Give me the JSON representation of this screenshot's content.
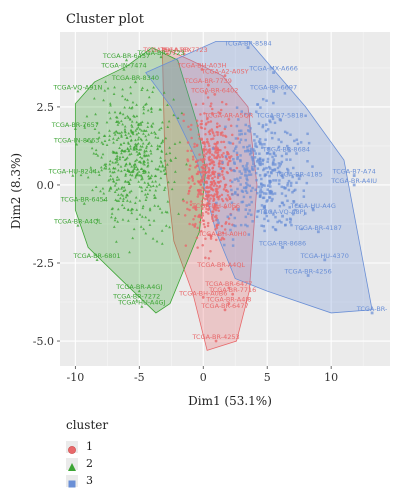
{
  "chart_data": {
    "type": "scatter",
    "title": "Cluster plot",
    "xlabel": "Dim1 (53.1%)",
    "ylabel": "Dim2 (8.3%)",
    "xlim": [
      -11.2,
      14.6
    ],
    "ylim": [
      -5.8,
      4.9
    ],
    "x_ticks": [
      -10,
      -5,
      0,
      5,
      10
    ],
    "x_tick_labels": [
      "-10",
      "-5",
      "0",
      "5",
      "10"
    ],
    "y_ticks": [
      2.5,
      0.0,
      -2.5,
      -5.0
    ],
    "y_tick_labels": [
      "2.5",
      "0.0",
      "-2.5",
      "-5.0"
    ],
    "grid": true,
    "legend_placement": "bottom-left",
    "legend_title": "cluster",
    "series": [
      {
        "name": "1",
        "color": "#E8696B",
        "marker": "circle",
        "hull": [
          [
            -3.2,
            4.4
          ],
          [
            -1.0,
            4.0
          ],
          [
            1.5,
            3.5
          ],
          [
            3.5,
            2.5
          ],
          [
            4.2,
            0.0
          ],
          [
            3.6,
            -3.4
          ],
          [
            2.6,
            -5.0
          ],
          [
            0.3,
            -5.3
          ],
          [
            -0.8,
            -3.5
          ],
          [
            -2.3,
            -1.8
          ],
          [
            -3.0,
            0.8
          ]
        ],
        "labeled_points": [
          {
            "x": -2.8,
            "y": 4.2,
            "label": "TCGA-BH-A1EX"
          },
          {
            "x": -1.5,
            "y": 4.2,
            "label": "TCGA-BR-7723"
          },
          {
            "x": -0.1,
            "y": 3.7,
            "label": "TCGA-BH-A03H"
          },
          {
            "x": 0.4,
            "y": 3.2,
            "label": "TCGA-BR-7739"
          },
          {
            "x": 1.7,
            "y": 3.5,
            "label": "TCGA-A2-A0SY"
          },
          {
            "x": 0.9,
            "y": 2.9,
            "label": "TCGA-BR-6402"
          },
          {
            "x": 2.0,
            "y": 2.1,
            "label": "TCGA-AR-A5QR"
          },
          {
            "x": 1.0,
            "y": -0.8,
            "label": "TCGA-BH-A0E6"
          },
          {
            "x": 1.5,
            "y": -1.7,
            "label": "TCGA-BH-A0H0"
          },
          {
            "x": 1.4,
            "y": -2.7,
            "label": "TCGA-BR-A4QL"
          },
          {
            "x": 2.0,
            "y": -3.3,
            "label": "TCGA-BR-6477"
          },
          {
            "x": 2.3,
            "y": -3.5,
            "label": "TCGA-BR-7716"
          },
          {
            "x": 0.0,
            "y": -3.6,
            "label": "TCGA-BH-A0B6"
          },
          {
            "x": 2.0,
            "y": -3.8,
            "label": "TCGA-BR-A4J8"
          },
          {
            "x": 1.7,
            "y": -4.0,
            "label": "TCGA-BR-6477"
          },
          {
            "x": 1.0,
            "y": -5.0,
            "label": "TCGA-BR-4253"
          }
        ]
      },
      {
        "name": "2",
        "color": "#3DA535",
        "marker": "triangle",
        "hull": [
          [
            -10.0,
            2.6
          ],
          [
            -8.5,
            3.3
          ],
          [
            -6.0,
            3.8
          ],
          [
            -4.0,
            4.4
          ],
          [
            -2.0,
            4.0
          ],
          [
            -0.5,
            2.0
          ],
          [
            0.2,
            0.5
          ],
          [
            -0.3,
            -1.5
          ],
          [
            -2.6,
            -3.8
          ],
          [
            -3.7,
            -4.1
          ],
          [
            -6.5,
            -3.0
          ],
          [
            -9.0,
            -2.0
          ],
          [
            -10.0,
            -0.8
          ]
        ],
        "labeled_points": [
          {
            "x": -3.3,
            "y": 4.1,
            "label": "TCGA-BR-7723"
          },
          {
            "x": -6.0,
            "y": 4.0,
            "label": "TCGA-BR-6457"
          },
          {
            "x": -6.2,
            "y": 3.7,
            "label": "TCGA-IN-7474"
          },
          {
            "x": -9.8,
            "y": 3.0,
            "label": "TCGA-VQ-A91N"
          },
          {
            "x": -10.0,
            "y": 1.8,
            "label": "TCGA-BR-7657"
          },
          {
            "x": -9.9,
            "y": 1.3,
            "label": "TCGA-IN-8663"
          },
          {
            "x": -10.2,
            "y": 0.3,
            "label": "TCGA-HU-8244"
          },
          {
            "x": -9.3,
            "y": -0.6,
            "label": "TCGA-BR-6454"
          },
          {
            "x": -9.8,
            "y": -1.3,
            "label": "TCGA-BR-A4QL"
          },
          {
            "x": -5.2,
            "y": -3.7,
            "label": "TCGA-BR-7272"
          },
          {
            "x": -4.8,
            "y": -3.9,
            "label": "TCGA-HU-A4GJ"
          },
          {
            "x": -5.0,
            "y": -3.4,
            "label": "TCGA-BR-A4GJ"
          },
          {
            "x": -5.3,
            "y": 3.3,
            "label": "TCGA-BR-8340"
          },
          {
            "x": -8.3,
            "y": -2.4,
            "label": "TCGA-BR-6801"
          }
        ]
      },
      {
        "name": "3",
        "color": "#6A8FD6",
        "marker": "square",
        "hull": [
          [
            -4.5,
            3.6
          ],
          [
            1.0,
            4.6
          ],
          [
            3.6,
            4.6
          ],
          [
            8.0,
            2.5
          ],
          [
            11.0,
            0.8
          ],
          [
            13.2,
            -4.0
          ],
          [
            10.0,
            -4.1
          ],
          [
            5.0,
            -3.4
          ],
          [
            2.5,
            -3.0
          ],
          [
            1.0,
            -1.5
          ],
          [
            -0.5,
            0.8
          ],
          [
            -2.5,
            2.5
          ]
        ],
        "labeled_points": [
          {
            "x": 3.5,
            "y": 4.4,
            "label": "TCGA-BR-8584"
          },
          {
            "x": 5.5,
            "y": 3.6,
            "label": "TCGA-MX-A666"
          },
          {
            "x": 5.5,
            "y": 3.0,
            "label": "TCGA-BR-6697"
          },
          {
            "x": 6.0,
            "y": 2.1,
            "label": "TCGA-B7-5818"
          },
          {
            "x": 6.5,
            "y": 1.0,
            "label": "TCGA-BR-8684"
          },
          {
            "x": 7.5,
            "y": 0.2,
            "label": "TCGA-BR-4185"
          },
          {
            "x": 11.8,
            "y": 0.3,
            "label": "TCGA-B7-A74"
          },
          {
            "x": 11.8,
            "y": 0.0,
            "label": "TCGA-BR-A4IU"
          },
          {
            "x": 8.6,
            "y": -0.8,
            "label": "TCGA-HU-A4G"
          },
          {
            "x": 6.2,
            "y": -1.0,
            "label": "TCGA-VQ-A8PJ"
          },
          {
            "x": 9.0,
            "y": -1.5,
            "label": "TCGA-BR-4187"
          },
          {
            "x": 9.5,
            "y": -2.4,
            "label": "TCGA-HU-4370"
          },
          {
            "x": 8.2,
            "y": -2.9,
            "label": "TCGA-BR-4256"
          },
          {
            "x": 6.2,
            "y": -2.0,
            "label": "TCGA-BR-8686"
          },
          {
            "x": 13.2,
            "y": -4.1,
            "label": "TCGA-BR-"
          }
        ]
      }
    ]
  }
}
